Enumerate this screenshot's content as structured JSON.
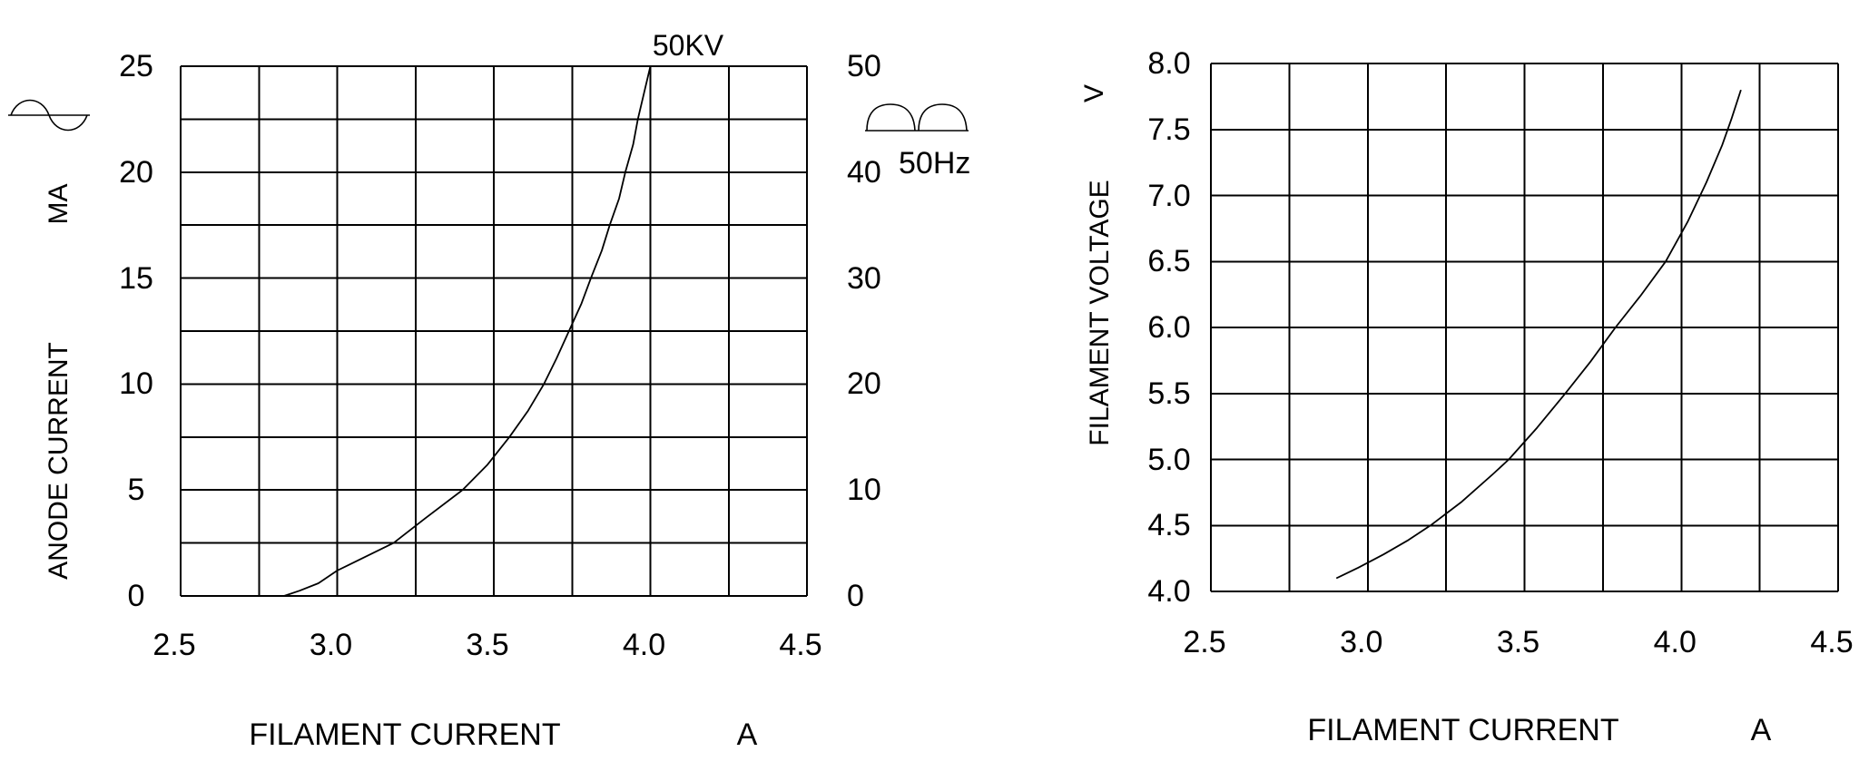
{
  "page": {
    "background": "#ffffff",
    "ink": "#000000"
  },
  "chart_data": [
    {
      "id": "anode-current-vs-filament-current",
      "type": "line",
      "grid": true,
      "curve_label": "50KV",
      "xlabel": "FILAMENT CURRENT",
      "xunit": "A",
      "ylabel_rotated": "ANODE CURRENT",
      "yunit_rotated": "MA",
      "left_icon": "sine-wave-icon",
      "xlim": [
        2.5,
        4.5
      ],
      "ylim": [
        0,
        25
      ],
      "xgrid_step": 0.25,
      "ygrid_step": 2.5,
      "xtick_values": [
        2.5,
        3.0,
        3.5,
        4.0,
        4.5
      ],
      "xtick_labels": [
        "2.5",
        "3.0",
        "3.5",
        "4.0",
        "4.5"
      ],
      "ytick_values": [
        0,
        5,
        10,
        15,
        20,
        25
      ],
      "ytick_labels": [
        "0",
        "5",
        "10",
        "15",
        "20",
        "25"
      ],
      "right_axis": {
        "lim": [
          0,
          50
        ],
        "tick_values": [
          0,
          10,
          20,
          30,
          40,
          50
        ],
        "tick_labels": [
          "0",
          "10",
          "20",
          "30",
          "40",
          "50"
        ],
        "annotation": "50Hz",
        "icon": "full-wave-rectified-icon"
      },
      "series": [
        {
          "name": "50KV",
          "points": [
            [
              2.83,
              0
            ],
            [
              2.88,
              0.25
            ],
            [
              2.94,
              0.6
            ],
            [
              3.0,
              1.2
            ],
            [
              3.09,
              1.85
            ],
            [
              3.18,
              2.5
            ],
            [
              3.28,
              3.65
            ],
            [
              3.4,
              5.0
            ],
            [
              3.48,
              6.2
            ],
            [
              3.55,
              7.5
            ],
            [
              3.61,
              8.75
            ],
            [
              3.66,
              10.0
            ],
            [
              3.7,
              11.2
            ],
            [
              3.74,
              12.5
            ],
            [
              3.78,
              13.8
            ],
            [
              3.81,
              15.0
            ],
            [
              3.845,
              16.3
            ],
            [
              3.87,
              17.5
            ],
            [
              3.9,
              18.75
            ],
            [
              3.92,
              20.0
            ],
            [
              3.945,
              21.3
            ],
            [
              3.96,
              22.5
            ],
            [
              3.98,
              23.75
            ],
            [
              4.0,
              25.0
            ]
          ]
        }
      ]
    },
    {
      "id": "filament-voltage-vs-filament-current",
      "type": "line",
      "grid": true,
      "xlabel": "FILAMENT CURRENT",
      "xunit": "A",
      "ylabel_rotated": "FILAMENT VOLTAGE",
      "yunit_rotated": "V",
      "xlim": [
        2.5,
        4.5
      ],
      "ylim": [
        4.0,
        8.0
      ],
      "xgrid_step": 0.25,
      "ygrid_step": 0.5,
      "xtick_values": [
        2.5,
        3.0,
        3.5,
        4.0,
        4.5
      ],
      "xtick_labels": [
        "2.5",
        "3.0",
        "3.5",
        "4.0",
        "4.5"
      ],
      "ytick_values": [
        4.0,
        4.5,
        5.0,
        5.5,
        6.0,
        6.5,
        7.0,
        7.5,
        8.0
      ],
      "ytick_labels": [
        "4.0",
        "4.5",
        "5.0",
        "5.5",
        "6.0",
        "6.5",
        "7.0",
        "7.5",
        "8.0"
      ],
      "series": [
        {
          "name": "",
          "points": [
            [
              2.9,
              4.1
            ],
            [
              2.97,
              4.18
            ],
            [
              3.05,
              4.28
            ],
            [
              3.13,
              4.39
            ],
            [
              3.2,
              4.5
            ],
            [
              3.3,
              4.68
            ],
            [
              3.4,
              4.89
            ],
            [
              3.45,
              5.0
            ],
            [
              3.54,
              5.24
            ],
            [
              3.63,
              5.5
            ],
            [
              3.71,
              5.74
            ],
            [
              3.79,
              6.0
            ],
            [
              3.87,
              6.24
            ],
            [
              3.95,
              6.5
            ],
            [
              4.02,
              6.8
            ],
            [
              4.08,
              7.1
            ],
            [
              4.13,
              7.38
            ],
            [
              4.16,
              7.58
            ],
            [
              4.19,
              7.8
            ]
          ]
        }
      ]
    }
  ]
}
